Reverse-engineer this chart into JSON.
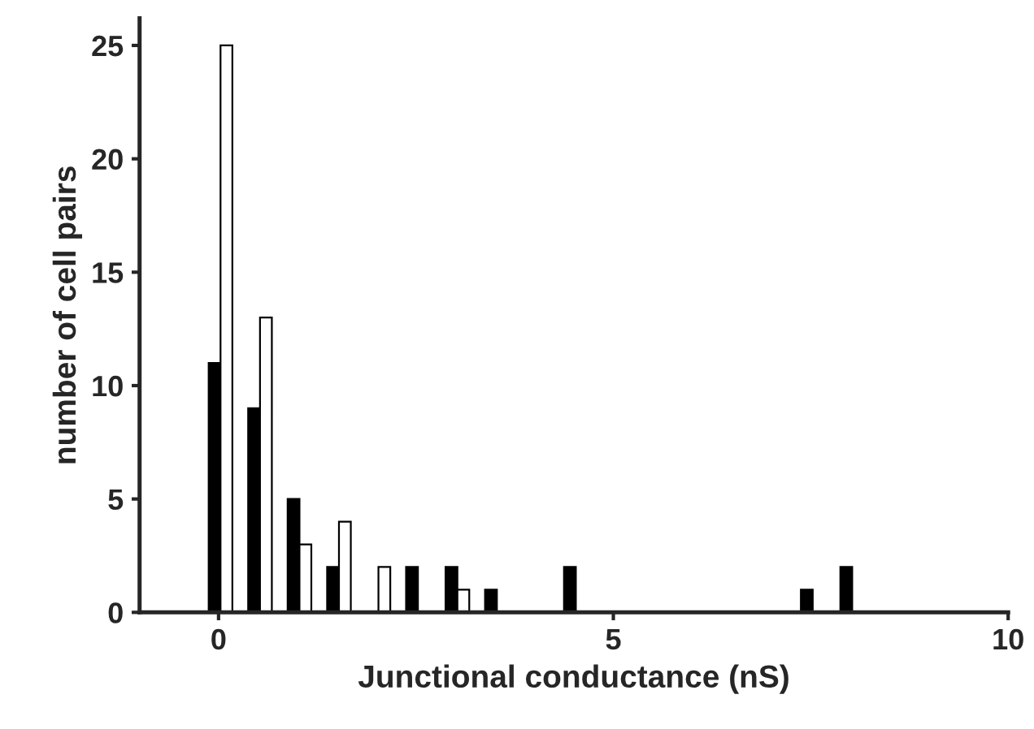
{
  "chart_data": {
    "type": "bar",
    "xlabel": "Junctional conductance (nS)",
    "ylabel": "number of cell pairs",
    "xlim": [
      -1,
      10
    ],
    "xticks": [
      0,
      5,
      10
    ],
    "ylim": [
      0,
      26.2
    ],
    "yticks": [
      0,
      5,
      10,
      15,
      20,
      25
    ],
    "grid": false,
    "legend": false,
    "x": [
      -0.05,
      0.1,
      0.45,
      0.6,
      0.95,
      1.1,
      1.45,
      1.6,
      2.1,
      2.45,
      2.95,
      3.1,
      3.45,
      4.45,
      7.45,
      7.95
    ],
    "values": [
      11,
      25,
      9,
      13,
      5,
      3,
      2,
      4,
      2,
      2,
      2,
      1,
      1,
      2,
      1,
      2
    ],
    "colors": [
      "#000000",
      "#ffffff",
      "#000000",
      "#ffffff",
      "#000000",
      "#ffffff",
      "#000000",
      "#ffffff",
      "#ffffff",
      "#000000",
      "#000000",
      "#ffffff",
      "#000000",
      "#000000",
      "#000000",
      "#000000"
    ]
  }
}
